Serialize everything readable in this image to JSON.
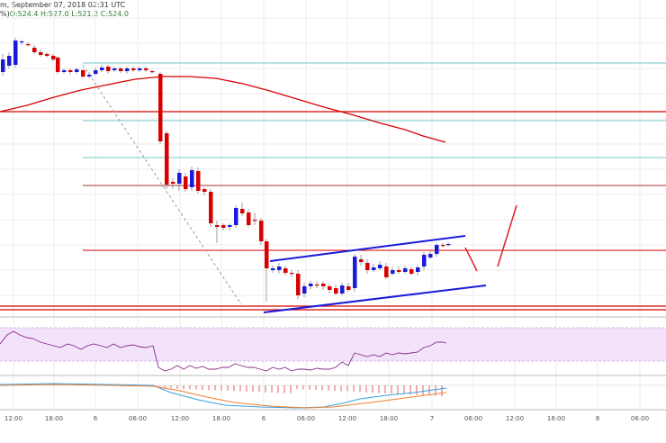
{
  "header": {
    "title": "m, September 07, 2018 02:31 UTC",
    "prefix": "%)",
    "ohlc": "O:524.4 H:527.0 L:521.2 C:524.0"
  },
  "colors": {
    "bull": "#1a1adb",
    "bear": "#d80000",
    "ma": "#d80000",
    "channel": "#1a1adb",
    "projection": "#e02020",
    "fib": "#40b8b0",
    "rsi": "#8a2a8a",
    "rsi_band": "#f2e3fb",
    "macd_line": "#3aa0e0",
    "signal_line": "#f08030",
    "hist": "#e06060",
    "grid": "#ececec"
  },
  "chart_data": {
    "type": "candlestick",
    "x_ticks": [
      "12:00",
      "18:00",
      "6",
      "06:00",
      "12:00",
      "18:00",
      "6",
      "06:00",
      "12:00",
      "18:00",
      "7",
      "06:00",
      "12:00",
      "18:00",
      "8",
      "06:00"
    ],
    "grid": true,
    "last_candle": {
      "open": 524.4,
      "high": 527.0,
      "low": 521.2,
      "close": 524.0
    },
    "indicators": [
      "moving average",
      "RSI",
      "MACD"
    ],
    "annotations": [
      "ascending channel",
      "horizontal support/resistance lines",
      "dashed trend line",
      "projected price path"
    ]
  }
}
